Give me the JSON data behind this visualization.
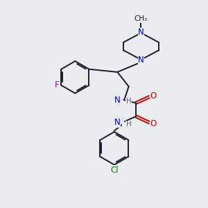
{
  "background_color": "#eaecf0",
  "bond_color": "#1a1a2e",
  "N_color": "#0000cc",
  "O_color": "#cc0000",
  "F_color": "#aa00aa",
  "Cl_color": "#007700",
  "H_color": "#606060",
  "line_width": 1.4,
  "font_size": 8.5,
  "figsize": [
    3.0,
    3.0
  ],
  "dpi": 100,
  "xlim": [
    0,
    10
  ],
  "ylim": [
    0,
    10
  ]
}
